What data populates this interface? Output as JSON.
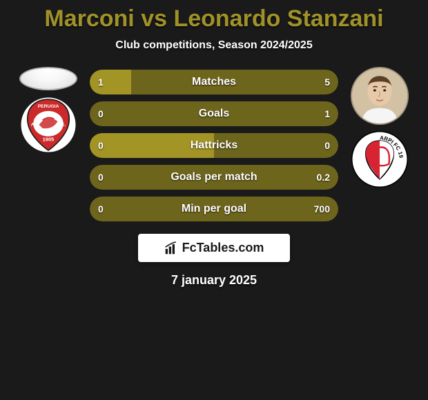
{
  "title_player1": "Marconi",
  "title_vs": " vs ",
  "title_player2": "Leonardo Stanzani",
  "title_color": "#a09228",
  "subtitle": "Club competitions, Season 2024/2025",
  "date": "7 january 2025",
  "branding": "FcTables.com",
  "bar_colors": {
    "left": "#a39426",
    "right": "#6e651d",
    "track": "#3a3a3a"
  },
  "left_club": {
    "name": "Perugia",
    "bg": "#ffffff",
    "shield": "#cc2a2a",
    "stroke": "#1a1a1a",
    "year": "1905"
  },
  "right_club": {
    "name": "Carpi FC 1909",
    "bg": "#ffffff",
    "primary": "#d62433",
    "secondary": "#1a1a1a",
    "text": "ARPI FC 1909"
  },
  "right_avatar": {
    "skin": "#e6c9a8",
    "hair": "#5a3f28",
    "shirt": "#f5f5f5"
  },
  "stats": [
    {
      "label": "Matches",
      "left_value": "1",
      "right_value": "5",
      "left_num": 1,
      "right_num": 5
    },
    {
      "label": "Goals",
      "left_value": "0",
      "right_value": "1",
      "left_num": 0,
      "right_num": 1
    },
    {
      "label": "Hattricks",
      "left_value": "0",
      "right_value": "0",
      "left_num": 0,
      "right_num": 0
    },
    {
      "label": "Goals per match",
      "left_value": "0",
      "right_value": "0.2",
      "left_num": 0,
      "right_num": 0.2
    },
    {
      "label": "Min per goal",
      "left_value": "0",
      "right_value": "700",
      "left_num": 0,
      "right_num": 700
    }
  ]
}
